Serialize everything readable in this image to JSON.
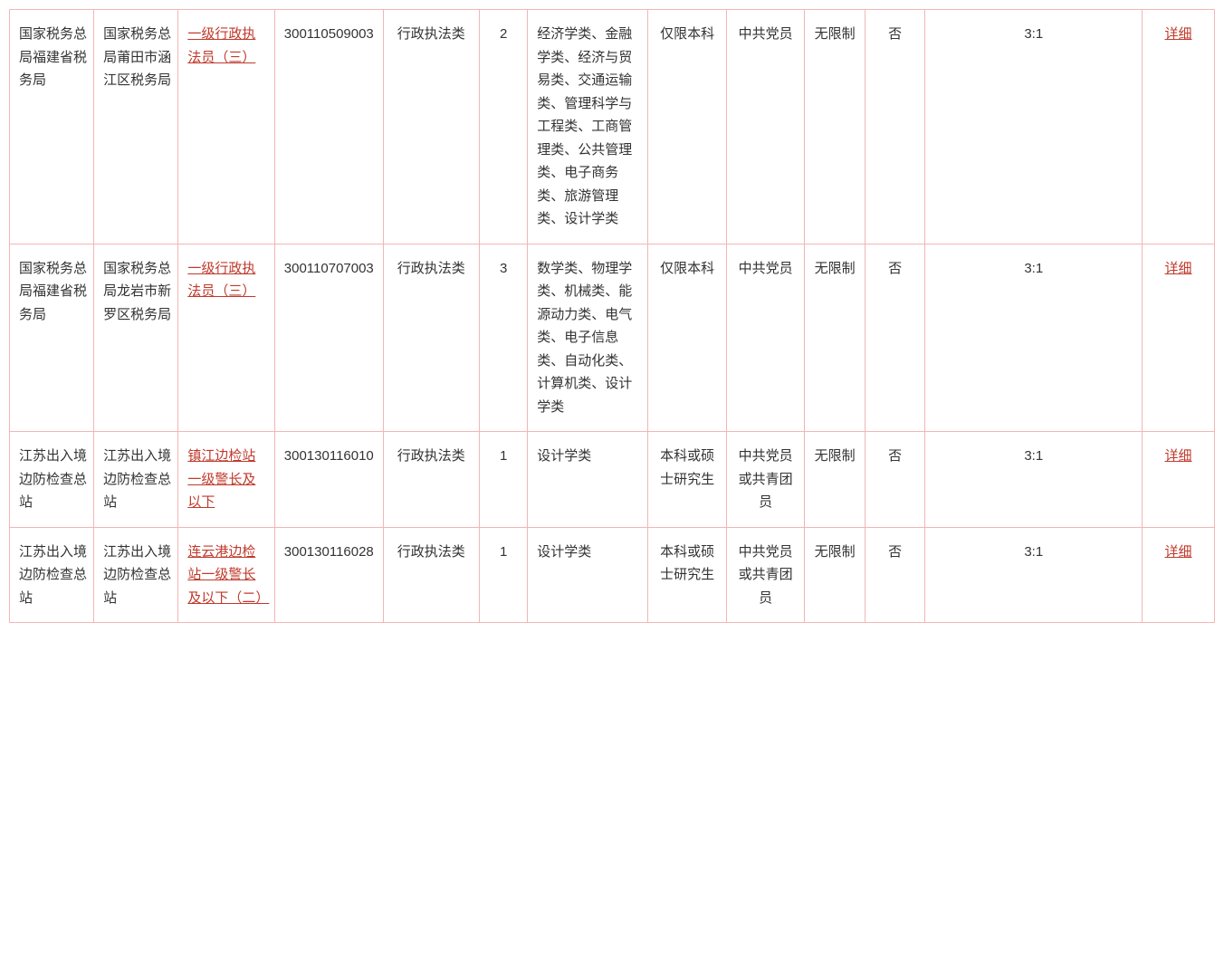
{
  "table": {
    "border_color": "#f4b5b5",
    "text_color": "#333333",
    "link_color": "#c0392b",
    "background_color": "#ffffff",
    "font_size": 15,
    "columns": [
      {
        "key": "dept",
        "width_pct": 7,
        "align": "left"
      },
      {
        "key": "unit",
        "width_pct": 7,
        "align": "left"
      },
      {
        "key": "position",
        "width_pct": 8,
        "align": "left"
      },
      {
        "key": "code",
        "width_pct": 9,
        "align": "left"
      },
      {
        "key": "category",
        "width_pct": 8,
        "align": "center"
      },
      {
        "key": "count",
        "width_pct": 4,
        "align": "center"
      },
      {
        "key": "major",
        "width_pct": 10,
        "align": "left"
      },
      {
        "key": "degree",
        "width_pct": 6.5,
        "align": "center"
      },
      {
        "key": "politics",
        "width_pct": 6.5,
        "align": "center"
      },
      {
        "key": "limit",
        "width_pct": 5,
        "align": "center"
      },
      {
        "key": "flag",
        "width_pct": 5,
        "align": "center"
      },
      {
        "key": "ratio",
        "width_pct": 18,
        "align": "center"
      },
      {
        "key": "detail",
        "width_pct": 6,
        "align": "center"
      }
    ],
    "rows": [
      {
        "dept": "国家税务总局福建省税务局",
        "unit": "国家税务总局莆田市涵江区税务局",
        "position": "一级行政执法员（三）",
        "code": "300110509003",
        "category": "行政执法类",
        "count": "2",
        "major": "经济学类、金融学类、经济与贸易类、交通运输类、管理科学与工程类、工商管理类、公共管理类、电子商务类、旅游管理类、设计学类",
        "degree": "仅限本科",
        "politics": "中共党员",
        "limit": "无限制",
        "flag": "否",
        "ratio": "3:1",
        "detail": "详细"
      },
      {
        "dept": "国家税务总局福建省税务局",
        "unit": "国家税务总局龙岩市新罗区税务局",
        "position": "一级行政执法员（三）",
        "code": "300110707003",
        "category": "行政执法类",
        "count": "3",
        "major": "数学类、物理学类、机械类、能源动力类、电气类、电子信息类、自动化类、计算机类、设计学类",
        "degree": "仅限本科",
        "politics": "中共党员",
        "limit": "无限制",
        "flag": "否",
        "ratio": "3:1",
        "detail": "详细"
      },
      {
        "dept": "江苏出入境边防检查总站",
        "unit": "江苏出入境边防检查总站",
        "position": "镇江边检站一级警长及以下",
        "code": "300130116010",
        "category": "行政执法类",
        "count": "1",
        "major": "设计学类",
        "degree": "本科或硕士研究生",
        "politics": "中共党员或共青团员",
        "limit": "无限制",
        "flag": "否",
        "ratio": "3:1",
        "detail": "详细"
      },
      {
        "dept": "江苏出入境边防检查总站",
        "unit": "江苏出入境边防检查总站",
        "position": "连云港边检站一级警长及以下（二）",
        "code": "300130116028",
        "category": "行政执法类",
        "count": "1",
        "major": "设计学类",
        "degree": "本科或硕士研究生",
        "politics": "中共党员或共青团员",
        "limit": "无限制",
        "flag": "否",
        "ratio": "3:1",
        "detail": "详细"
      }
    ]
  }
}
